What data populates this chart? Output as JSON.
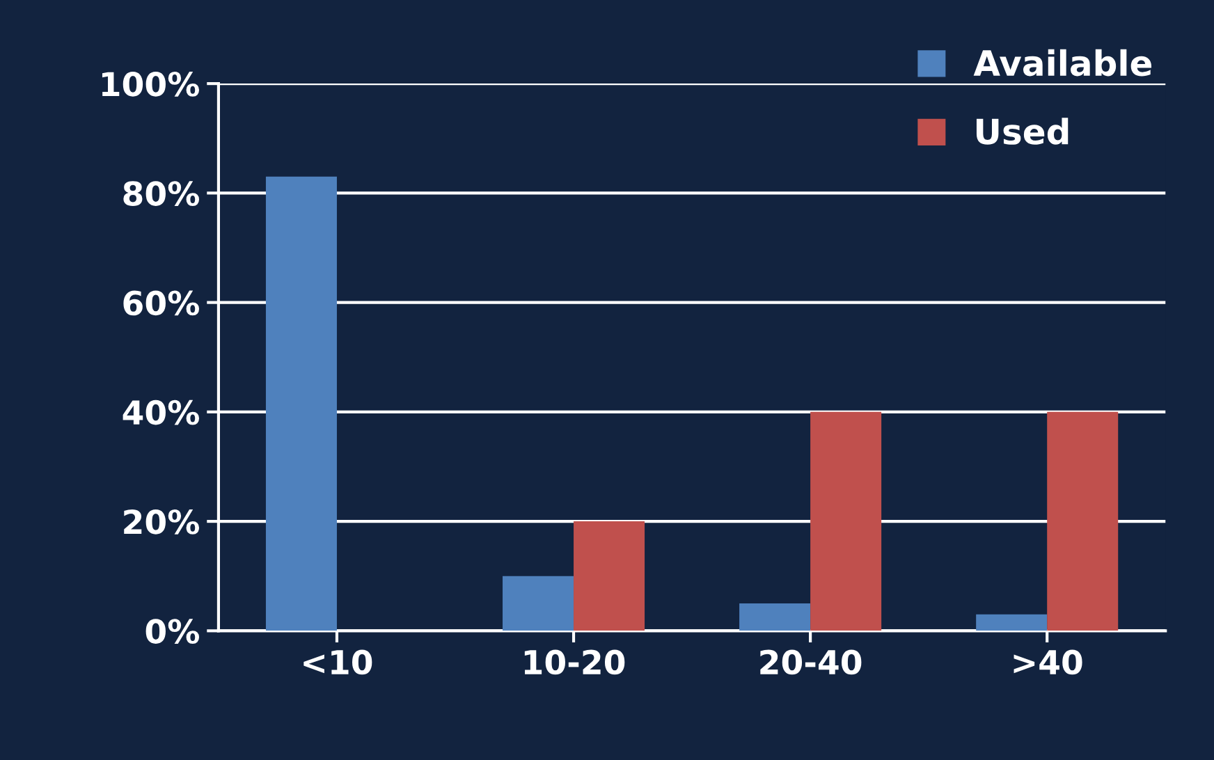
{
  "chart_data": {
    "type": "bar",
    "categories": [
      "<10",
      "10-20",
      "20-40",
      ">40"
    ],
    "series": [
      {
        "name": "Available",
        "color": "#4f81bd",
        "values": [
          83,
          10,
          5,
          3
        ]
      },
      {
        "name": "Used",
        "color": "#c0504d",
        "values": [
          0,
          20,
          40,
          40
        ]
      }
    ],
    "ylim": [
      0,
      100
    ],
    "yticks": [
      {
        "value": 0,
        "label": "0%"
      },
      {
        "value": 20,
        "label": "20%"
      },
      {
        "value": 40,
        "label": "40%"
      },
      {
        "value": 60,
        "label": "60%"
      },
      {
        "value": 80,
        "label": "80%"
      },
      {
        "value": 100,
        "label": "100%"
      }
    ],
    "grid": "y",
    "legend": "top right"
  }
}
